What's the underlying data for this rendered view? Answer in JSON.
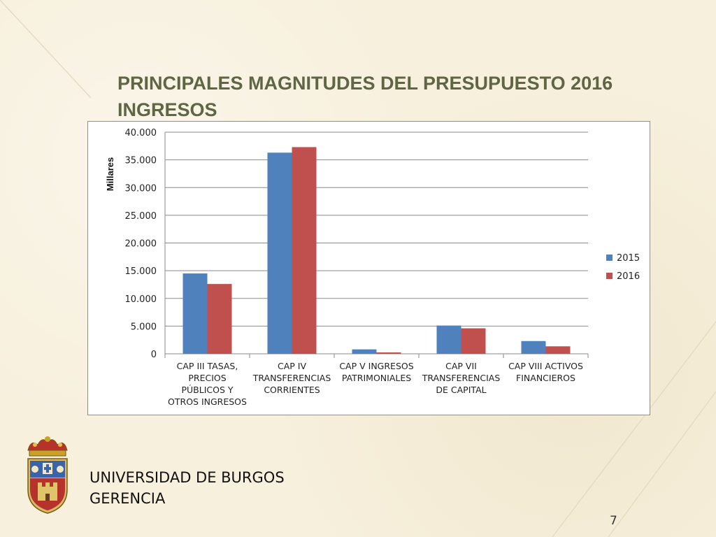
{
  "slide": {
    "title_line1": "PRINCIPALES MAGNITUDES DEL PRESUPUESTO 2016",
    "title_line2": "INGRESOS",
    "org_line1": "UNIVERSIDAD DE BURGOS",
    "org_line2": "GERENCIA",
    "page_number": "7",
    "logo_icon": "university-crest-icon"
  },
  "chart_data": {
    "type": "bar",
    "title": "",
    "ylabel": "Millares",
    "xlabel": "",
    "ylim": [
      0,
      40000
    ],
    "yticks": [
      0,
      5000,
      10000,
      15000,
      20000,
      25000,
      30000,
      35000,
      40000
    ],
    "ytick_labels": [
      "0",
      "5.000",
      "10.000",
      "15.000",
      "20.000",
      "25.000",
      "30.000",
      "35.000",
      "40.000"
    ],
    "grid": true,
    "legend_position": "right",
    "categories": [
      [
        "CAP III TASAS,",
        "PRECIOS",
        "PÚBLICOS Y",
        "OTROS INGRESOS"
      ],
      [
        "CAP IV",
        "TRANSFERENCIAS",
        "CORRIENTES"
      ],
      [
        "CAP V INGRESOS",
        "PATRIMONIALES"
      ],
      [
        "CAP VII",
        "TRANSFERENCIAS",
        "DE CAPITAL"
      ],
      [
        "CAP VIII ACTIVOS",
        "FINANCIEROS"
      ]
    ],
    "series": [
      {
        "name": "2015",
        "color": "#4f81bd",
        "values": [
          14500,
          36300,
          800,
          5100,
          2300
        ]
      },
      {
        "name": "2016",
        "color": "#c0504d",
        "values": [
          12600,
          37300,
          250,
          4600,
          1350
        ]
      }
    ]
  }
}
